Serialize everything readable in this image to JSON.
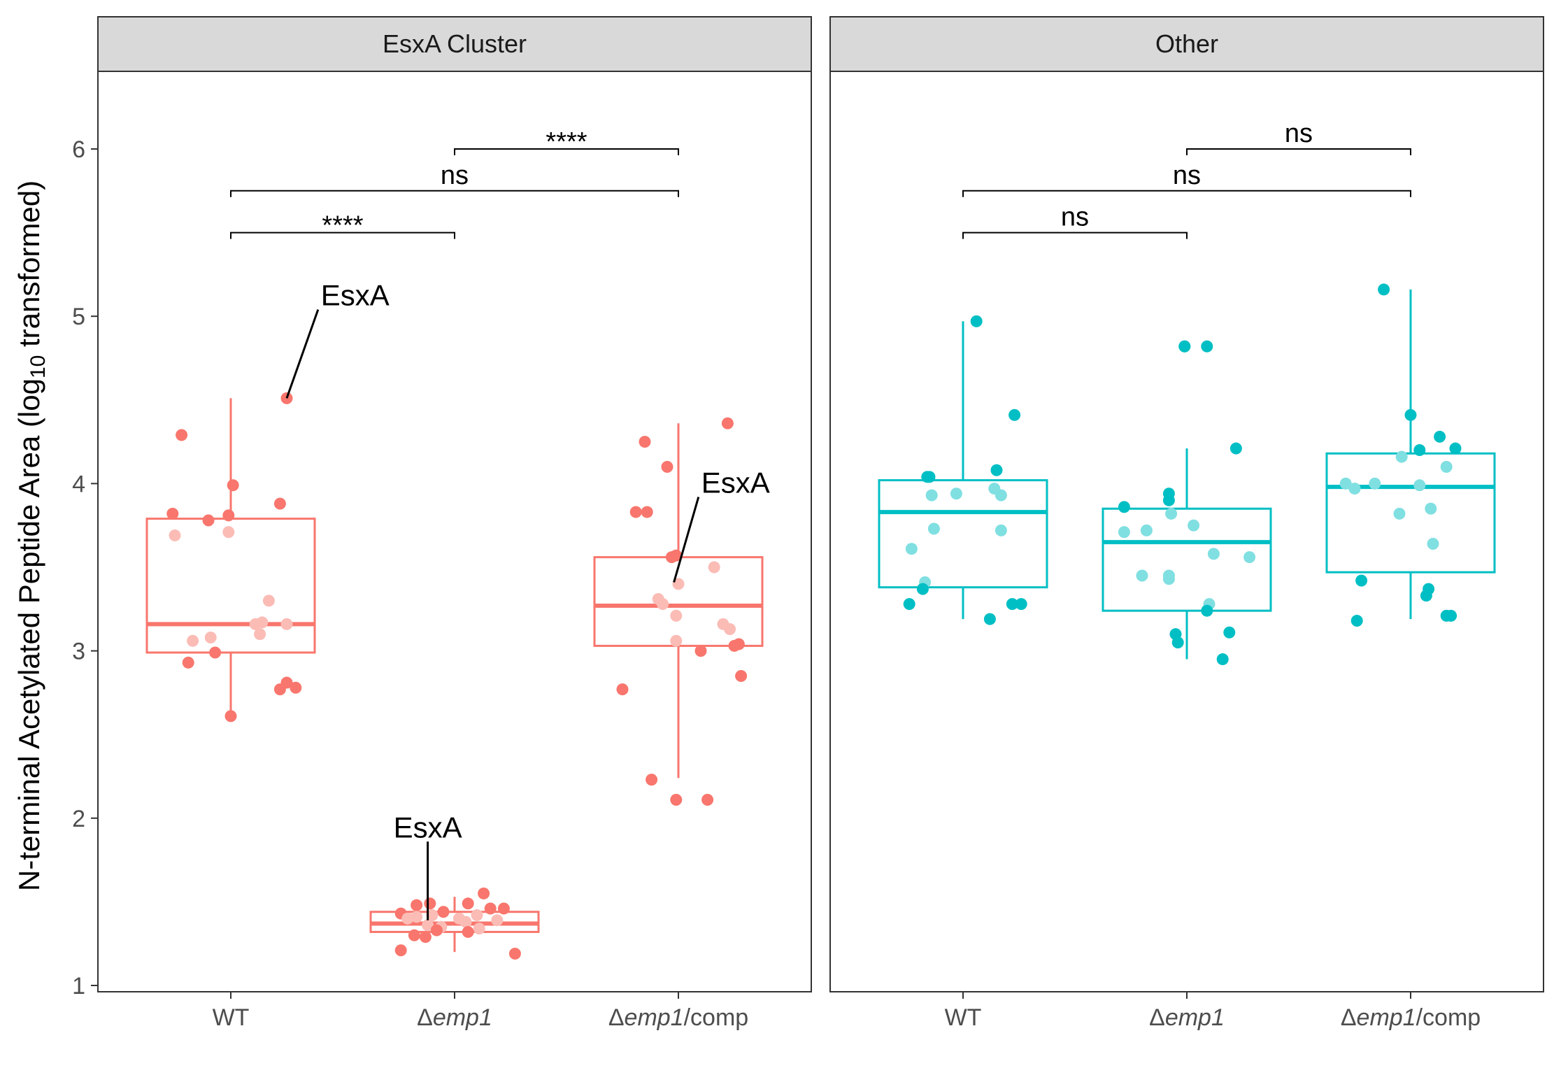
{
  "chart_data": {
    "type": "box",
    "ylabel": {
      "main": "N-terminal Acetylated Peptide Area (log",
      "sub": "10",
      "tail": " transformed)"
    },
    "ylim": [
      1,
      6.5
    ],
    "yticks": [
      1,
      2,
      3,
      4,
      5,
      6
    ],
    "ytick_labels": [
      "1",
      "2",
      "3",
      "4",
      "5",
      "6"
    ],
    "categories": [
      {
        "prefix": "WT",
        "italic": "",
        "suffix": ""
      },
      {
        "prefix": "Δ",
        "italic": "emp1",
        "suffix": ""
      },
      {
        "prefix": "Δ",
        "italic": "emp1",
        "suffix": "/comp"
      }
    ],
    "colors": {
      "EsxA Cluster": "#F8766D",
      "Other": "#00BFC4"
    },
    "panels": [
      {
        "name": "EsxA Cluster",
        "color": "#F8766D",
        "light_color": "#FBBCB6",
        "boxes": [
          {
            "q1": 2.99,
            "median": 3.16,
            "q3": 3.79,
            "whisker_low": 2.61,
            "whisker_high": 4.51
          },
          {
            "q1": 1.32,
            "median": 1.37,
            "q3": 1.44,
            "whisker_low": 1.2,
            "whisker_high": 1.53
          },
          {
            "q1": 3.03,
            "median": 3.27,
            "q3": 3.56,
            "whisker_low": 2.24,
            "whisker_high": 4.36
          }
        ],
        "points": [
          [
            [
              -0.22,
              4.29
            ],
            [
              0.25,
              4.51
            ],
            [
              0.01,
              3.99
            ],
            [
              0.22,
              3.88
            ],
            [
              -0.26,
              3.82
            ],
            [
              -0.01,
              3.81
            ],
            [
              -0.1,
              3.78
            ],
            [
              -0.01,
              3.71
            ],
            [
              -0.25,
              3.69
            ],
            [
              0.17,
              3.3
            ],
            [
              0.14,
              3.17
            ],
            [
              0.25,
              3.16
            ],
            [
              0.11,
              3.16
            ],
            [
              0.13,
              3.1
            ],
            [
              -0.09,
              3.08
            ],
            [
              -0.17,
              3.06
            ],
            [
              -0.07,
              2.99
            ],
            [
              -0.19,
              2.93
            ],
            [
              0.25,
              2.81
            ],
            [
              0.29,
              2.78
            ],
            [
              0.22,
              2.77
            ],
            [
              0.0,
              2.61
            ]
          ],
          [
            [
              0.13,
              1.55
            ],
            [
              0.06,
              1.49
            ],
            [
              -0.17,
              1.48
            ],
            [
              -0.11,
              1.49
            ],
            [
              0.16,
              1.46
            ],
            [
              0.22,
              1.46
            ],
            [
              -0.05,
              1.44
            ],
            [
              -0.1,
              1.42
            ],
            [
              -0.24,
              1.43
            ],
            [
              -0.17,
              1.41
            ],
            [
              0.1,
              1.42
            ],
            [
              -0.21,
              1.4
            ],
            [
              0.02,
              1.4
            ],
            [
              0.19,
              1.39
            ],
            [
              0.05,
              1.38
            ],
            [
              -0.12,
              1.36
            ],
            [
              -0.06,
              1.35
            ],
            [
              -0.08,
              1.33
            ],
            [
              0.11,
              1.34
            ],
            [
              0.06,
              1.32
            ],
            [
              -0.18,
              1.3
            ],
            [
              -0.13,
              1.29
            ],
            [
              -0.24,
              1.21
            ],
            [
              0.27,
              1.19
            ]
          ],
          [
            [
              0.22,
              4.36
            ],
            [
              -0.15,
              4.25
            ],
            [
              -0.05,
              4.1
            ],
            [
              -0.19,
              3.83
            ],
            [
              -0.14,
              3.83
            ],
            [
              -0.01,
              3.57
            ],
            [
              -0.03,
              3.56
            ],
            [
              0.16,
              3.5
            ],
            [
              -0.09,
              3.31
            ],
            [
              -0.07,
              3.28
            ],
            [
              0.0,
              3.4
            ],
            [
              -0.01,
              3.21
            ],
            [
              0.2,
              3.16
            ],
            [
              0.23,
              3.13
            ],
            [
              0.27,
              3.04
            ],
            [
              0.25,
              3.03
            ],
            [
              -0.01,
              3.06
            ],
            [
              0.1,
              3.0
            ],
            [
              0.28,
              2.85
            ],
            [
              -0.25,
              2.77
            ],
            [
              -0.12,
              2.23
            ],
            [
              -0.01,
              2.11
            ],
            [
              0.13,
              2.11
            ]
          ]
        ],
        "brackets": [
          {
            "from": 0,
            "to": 1,
            "y": 5.5,
            "label": "****"
          },
          {
            "from": 0,
            "to": 2,
            "y": 5.75,
            "label": "ns"
          },
          {
            "from": 1,
            "to": 2,
            "y": 6.0,
            "label": "****"
          }
        ],
        "annotations": [
          {
            "label": "EsxA",
            "group": 0,
            "point_dx": 0.25,
            "point_y": 4.51,
            "text_dx": 0.39,
            "text_y": 5.04
          },
          {
            "label": "EsxA",
            "group": 1,
            "point_dx": -0.12,
            "point_y": 1.39,
            "text_dx": -0.12,
            "text_y": 1.86
          },
          {
            "label": "EsxA",
            "group": 2,
            "point_dx": -0.02,
            "point_y": 3.41,
            "text_dx": 0.09,
            "text_y": 3.92
          }
        ]
      },
      {
        "name": "Other",
        "color": "#00BFC4",
        "light_color": "#80DFE1",
        "boxes": [
          {
            "q1": 3.38,
            "median": 3.83,
            "q3": 4.02,
            "whisker_low": 3.19,
            "whisker_high": 4.97
          },
          {
            "q1": 3.24,
            "median": 3.65,
            "q3": 3.85,
            "whisker_low": 2.95,
            "whisker_high": 4.21
          },
          {
            "q1": 3.47,
            "median": 3.98,
            "q3": 4.18,
            "whisker_low": 3.19,
            "whisker_high": 5.16
          }
        ],
        "points": [
          [
            [
              0.06,
              4.97
            ],
            [
              0.23,
              4.41
            ],
            [
              -0.15,
              4.04
            ],
            [
              -0.16,
              4.04
            ],
            [
              0.15,
              4.08
            ],
            [
              -0.03,
              3.94
            ],
            [
              -0.14,
              3.93
            ],
            [
              0.14,
              3.97
            ],
            [
              0.17,
              3.93
            ],
            [
              -0.13,
              3.73
            ],
            [
              0.17,
              3.72
            ],
            [
              -0.23,
              3.61
            ],
            [
              -0.17,
              3.41
            ],
            [
              -0.18,
              3.37
            ],
            [
              -0.24,
              3.28
            ],
            [
              0.26,
              3.28
            ],
            [
              0.22,
              3.28
            ],
            [
              0.12,
              3.19
            ]
          ],
          [
            [
              -0.01,
              4.82
            ],
            [
              0.09,
              4.82
            ],
            [
              -0.01,
              4.82
            ],
            [
              0.22,
              4.21
            ],
            [
              -0.08,
              3.94
            ],
            [
              -0.08,
              3.9
            ],
            [
              -0.28,
              3.86
            ],
            [
              -0.07,
              3.82
            ],
            [
              0.03,
              3.75
            ],
            [
              -0.28,
              3.71
            ],
            [
              -0.18,
              3.72
            ],
            [
              0.12,
              3.58
            ],
            [
              0.28,
              3.56
            ],
            [
              -0.08,
              3.43
            ],
            [
              -0.08,
              3.45
            ],
            [
              -0.2,
              3.45
            ],
            [
              0.1,
              3.28
            ],
            [
              0.09,
              3.24
            ],
            [
              0.19,
              3.11
            ],
            [
              -0.05,
              3.1
            ],
            [
              -0.04,
              3.05
            ],
            [
              0.16,
              2.95
            ]
          ],
          [
            [
              -0.12,
              5.16
            ],
            [
              0.0,
              4.41
            ],
            [
              0.13,
              4.28
            ],
            [
              0.04,
              4.2
            ],
            [
              0.2,
              4.21
            ],
            [
              -0.29,
              4.0
            ],
            [
              -0.16,
              4.0
            ],
            [
              0.16,
              4.1
            ],
            [
              -0.04,
              4.16
            ],
            [
              0.04,
              3.99
            ],
            [
              -0.25,
              3.97
            ],
            [
              0.09,
              3.85
            ],
            [
              -0.05,
              3.82
            ],
            [
              0.1,
              3.64
            ],
            [
              -0.22,
              3.42
            ],
            [
              0.08,
              3.37
            ],
            [
              0.07,
              3.33
            ],
            [
              -0.24,
              3.18
            ],
            [
              0.18,
              3.21
            ],
            [
              0.16,
              3.21
            ]
          ]
        ],
        "brackets": [
          {
            "from": 0,
            "to": 1,
            "y": 5.5,
            "label": "ns"
          },
          {
            "from": 0,
            "to": 2,
            "y": 5.75,
            "label": "ns"
          },
          {
            "from": 1,
            "to": 2,
            "y": 6.0,
            "label": "ns"
          }
        ],
        "annotations": []
      }
    ]
  }
}
